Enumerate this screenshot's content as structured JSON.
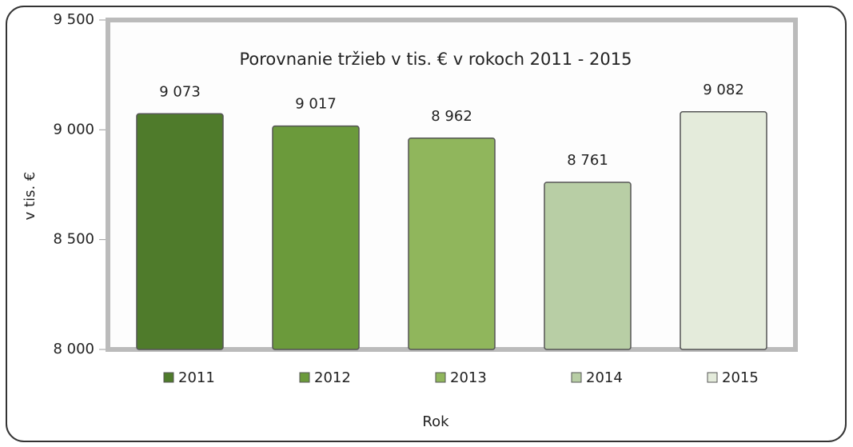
{
  "chart_data": {
    "type": "bar",
    "title": "Porovnanie tržieb v tis. € v rokoch 2011 - 2015",
    "y_label": "v tis. €",
    "x_label": "Rok",
    "series": [
      {
        "name": "2011",
        "color": "#4f7b2b",
        "values": [
          9073
        ],
        "value_labels": [
          "9 073"
        ]
      },
      {
        "name": "2012",
        "color": "#6b9a3b",
        "values": [
          9017
        ],
        "value_labels": [
          "9 017"
        ]
      },
      {
        "name": "2013",
        "color": "#90b65c",
        "values": [
          8962
        ],
        "value_labels": [
          "8 962"
        ]
      },
      {
        "name": "2014",
        "color": "#b8cea5",
        "values": [
          8761
        ],
        "value_labels": [
          "8 761"
        ]
      },
      {
        "name": "2015",
        "color": "#e4ebdb",
        "values": [
          9082
        ],
        "value_labels": [
          "9 082"
        ]
      }
    ],
    "ylim": [
      8000,
      9500
    ],
    "yticks": [
      {
        "value": 8000,
        "label": "8 000"
      },
      {
        "value": 8500,
        "label": "8 500"
      },
      {
        "value": 9000,
        "label": "9 000"
      },
      {
        "value": 9500,
        "label": "9 500"
      }
    ],
    "legend": "bottom"
  }
}
